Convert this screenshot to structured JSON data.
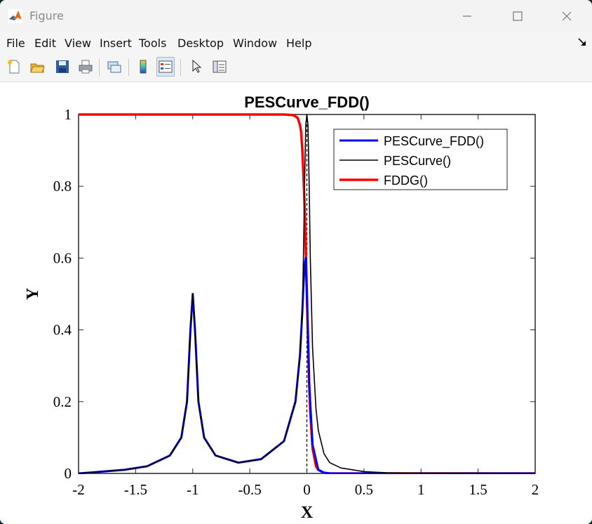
{
  "window": {
    "title": "Figure",
    "menu": [
      "File",
      "Edit",
      "View",
      "Insert",
      "Tools",
      "Desktop",
      "Window",
      "Help"
    ],
    "toolbar_icons": [
      "new-figure-icon",
      "open-file-icon",
      "save-icon",
      "print-icon",
      "link-icon",
      "colorbar-icon",
      "legend-icon",
      "pointer-icon",
      "property-inspector-icon"
    ]
  },
  "chart_data": {
    "type": "line",
    "title": "PESCurve_FDD()",
    "xlabel": "X",
    "ylabel": "Y",
    "xlim": [
      -2,
      2
    ],
    "ylim": [
      0,
      1
    ],
    "xticks": [
      "-2",
      "-1.5",
      "-1",
      "-0.5",
      "0",
      "0.5",
      "1",
      "1.5",
      "2"
    ],
    "yticks": [
      "0",
      "0.2",
      "0.4",
      "0.6",
      "0.8",
      "1"
    ],
    "grid": false,
    "legend_position": "top-right",
    "vertical_line_x": 0,
    "series": [
      {
        "name": "PESCurve_FDD()",
        "color": "#0000ff",
        "x": [
          -2,
          -1.6,
          -1.4,
          -1.2,
          -1.1,
          -1.05,
          -1.02,
          -1,
          -0.98,
          -0.95,
          -0.9,
          -0.8,
          -0.6,
          -0.4,
          -0.2,
          -0.1,
          -0.06,
          -0.04,
          -0.03,
          -0.02,
          -0.01,
          0,
          0.02,
          0.05,
          0.1,
          0.15,
          0.2,
          0.3,
          0.5,
          2
        ],
        "y": [
          0,
          0.01,
          0.02,
          0.05,
          0.1,
          0.2,
          0.4,
          0.5,
          0.4,
          0.2,
          0.1,
          0.05,
          0.03,
          0.04,
          0.09,
          0.2,
          0.33,
          0.45,
          0.52,
          0.58,
          0.6,
          0.5,
          0.25,
          0.08,
          0.01,
          0.002,
          0,
          0,
          0,
          0
        ]
      },
      {
        "name": "PESCurve()",
        "color": "#000000",
        "x": [
          -2,
          -1.6,
          -1.4,
          -1.2,
          -1.1,
          -1.05,
          -1.02,
          -1,
          -0.98,
          -0.95,
          -0.9,
          -0.8,
          -0.6,
          -0.4,
          -0.2,
          -0.1,
          -0.06,
          -0.04,
          -0.03,
          -0.02,
          -0.01,
          0,
          0.01,
          0.02,
          0.03,
          0.05,
          0.08,
          0.1,
          0.15,
          0.2,
          0.3,
          0.5,
          0.7,
          1,
          2
        ],
        "y": [
          0,
          0.01,
          0.02,
          0.05,
          0.1,
          0.2,
          0.4,
          0.5,
          0.4,
          0.2,
          0.1,
          0.05,
          0.03,
          0.04,
          0.09,
          0.2,
          0.33,
          0.45,
          0.6,
          0.8,
          0.97,
          1,
          0.97,
          0.8,
          0.6,
          0.35,
          0.18,
          0.12,
          0.055,
          0.03,
          0.015,
          0.005,
          0.002,
          0.001,
          0
        ]
      },
      {
        "name": "FDDG()",
        "color": "#ff0000",
        "x": [
          -2,
          -0.2,
          -0.15,
          -0.12,
          -0.1,
          -0.08,
          -0.06,
          -0.05,
          -0.04,
          -0.03,
          -0.02,
          -0.01,
          0,
          0.01,
          0.02,
          0.03,
          0.05,
          0.08,
          0.1,
          0.15,
          0.2,
          2
        ],
        "y": [
          1,
          1,
          0.999,
          0.998,
          0.995,
          0.99,
          0.97,
          0.95,
          0.9,
          0.83,
          0.75,
          0.62,
          0.5,
          0.38,
          0.25,
          0.17,
          0.07,
          0.02,
          0.01,
          0.002,
          0,
          0
        ]
      }
    ]
  }
}
